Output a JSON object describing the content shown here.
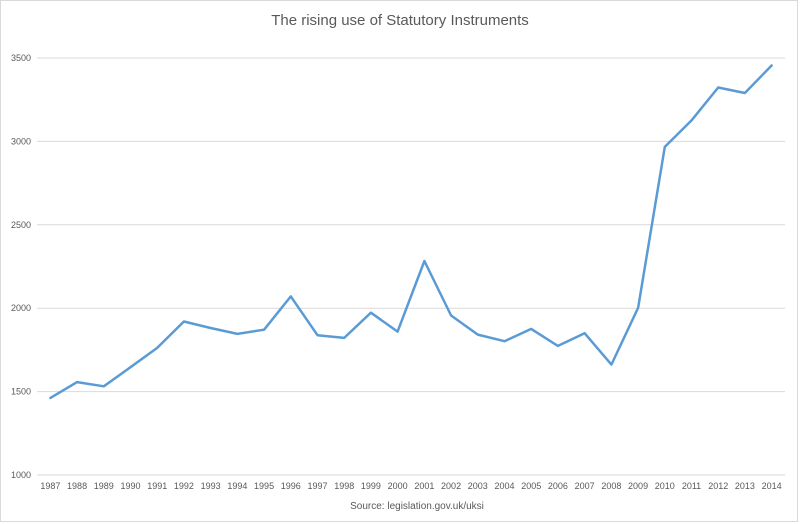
{
  "chart_data": {
    "type": "line",
    "title": "The rising use of Statutory Instruments",
    "source": "Source: legislation.gov.uk/uksi",
    "xlabel": "",
    "ylabel": "",
    "categories": [
      "1987",
      "1988",
      "1989",
      "1990",
      "1991",
      "1992",
      "1993",
      "1994",
      "1995",
      "1996",
      "1997",
      "1998",
      "1999",
      "2000",
      "2001",
      "2002",
      "2003",
      "2004",
      "2005",
      "2006",
      "2007",
      "2008",
      "2009",
      "2010",
      "2011",
      "2012",
      "2013",
      "2014"
    ],
    "series": [
      {
        "values": [
          1462,
          1557,
          1532,
          1646,
          1762,
          1920,
          1881,
          1846,
          1871,
          2071,
          1838,
          1822,
          1973,
          1860,
          2283,
          1956,
          1842,
          1802,
          1876,
          1774,
          1850,
          1662,
          2002,
          2967,
          3126,
          3323,
          3290,
          3455
        ],
        "color": "#5b9bd5"
      }
    ],
    "ylim": [
      1000,
      3500
    ],
    "yticks": [
      1000,
      1500,
      2000,
      2500,
      3000,
      3500
    ],
    "grid": true,
    "legend": "none"
  }
}
